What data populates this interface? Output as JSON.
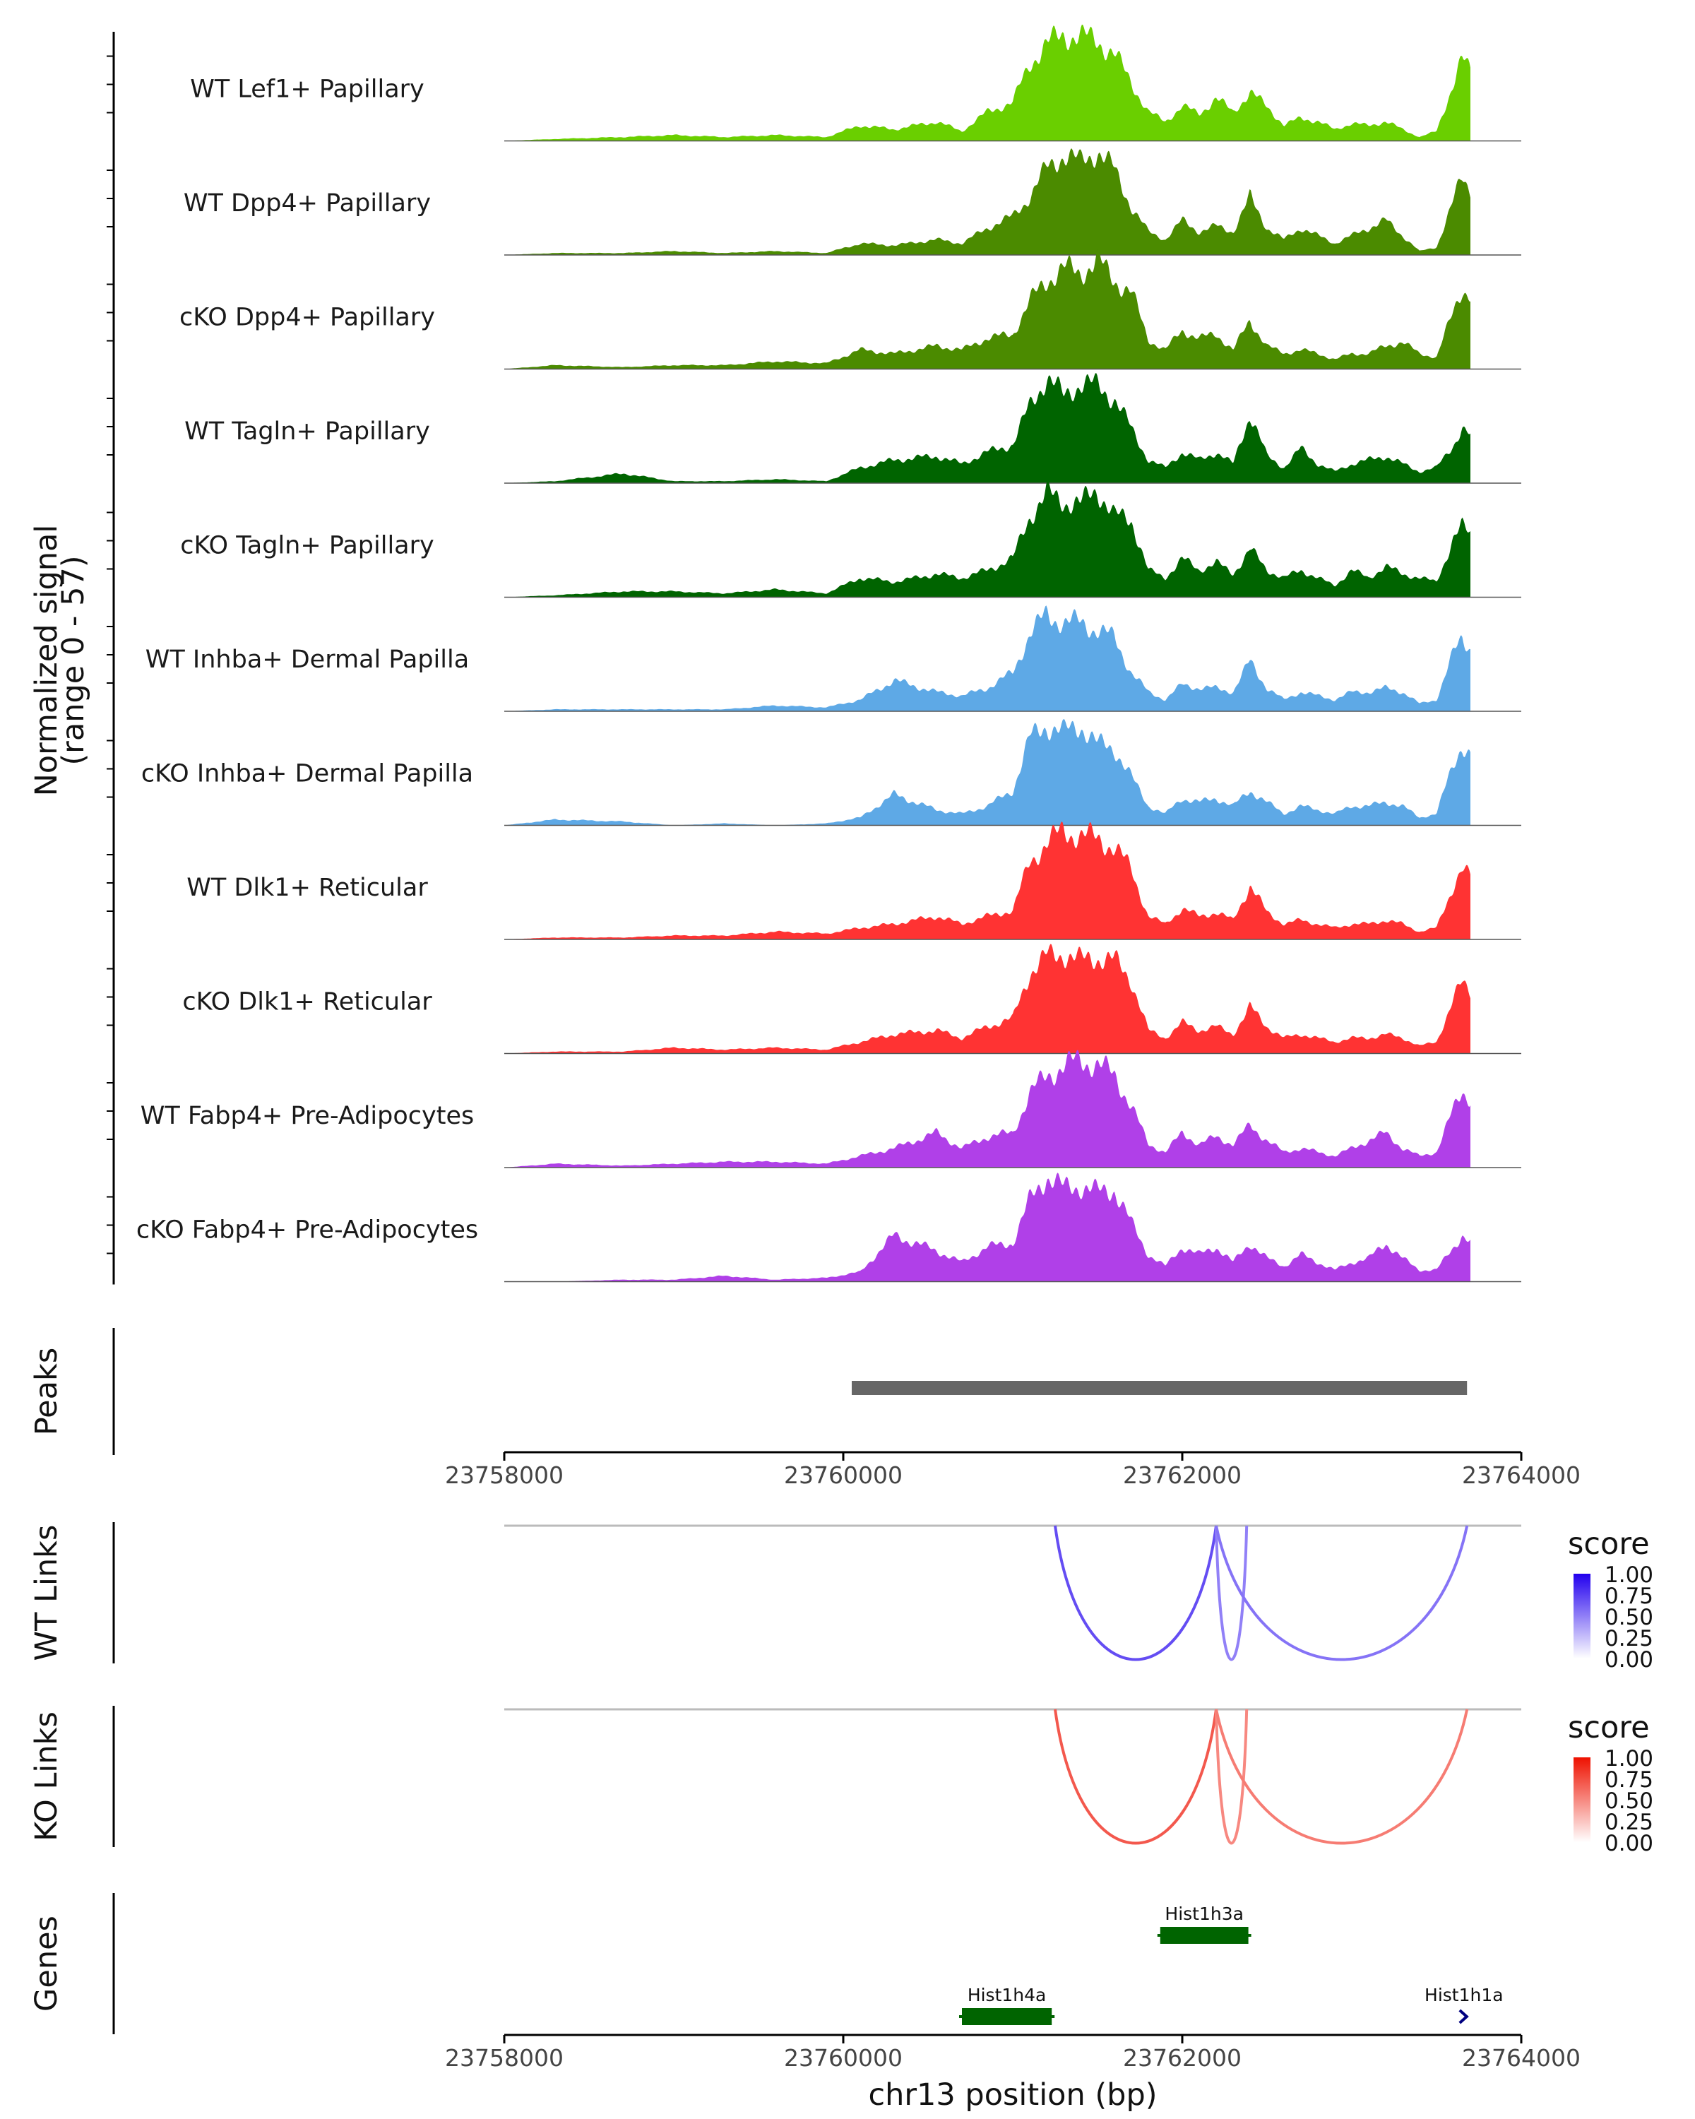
{
  "chart_data": {
    "type": "area",
    "region": "chr13",
    "xlim": [
      23758000,
      23764000
    ],
    "x_ticks": [
      23758000,
      23760000,
      23762000,
      23764000
    ],
    "x_tick_labels": [
      "23758000",
      "23760000",
      "23762000",
      "23764000"
    ],
    "xlabel": "chr13 position (bp)",
    "coverage": {
      "ylabel_line1": "Normalized signal",
      "ylabel_line2": "(range 0 - 57)",
      "ylim": [
        0,
        57
      ],
      "x": [
        23758000,
        23758300,
        23758700,
        23759000,
        23759300,
        23759600,
        23759900,
        23760100,
        23760300,
        23760550,
        23760700,
        23760850,
        23761000,
        23761100,
        23761200,
        23761300,
        23761400,
        23761500,
        23761600,
        23761700,
        23761800,
        23761900,
        23762000,
        23762100,
        23762200,
        23762300,
        23762400,
        23762500,
        23762600,
        23762700,
        23762800,
        23762900,
        23763000,
        23763100,
        23763200,
        23763300,
        23763400,
        23763500,
        23763600,
        23763650,
        23763700
      ],
      "tracks": [
        {
          "name": "WT Lef1+ Papillary",
          "color": "#6acf00",
          "values": [
            0,
            1,
            2,
            3,
            2,
            3,
            2,
            8,
            6,
            10,
            5,
            15,
            20,
            40,
            50,
            55,
            54,
            52,
            45,
            30,
            15,
            10,
            18,
            14,
            22,
            15,
            25,
            18,
            8,
            12,
            10,
            6,
            9,
            8,
            10,
            6,
            2,
            5,
            30,
            42,
            36
          ]
        },
        {
          "name": "WT Dpp4+ Papillary",
          "color": "#4b8b00",
          "values": [
            0,
            1,
            1,
            2,
            1,
            2,
            1,
            6,
            5,
            8,
            6,
            14,
            20,
            30,
            45,
            52,
            48,
            54,
            44,
            25,
            12,
            8,
            18,
            12,
            15,
            12,
            30,
            14,
            8,
            14,
            10,
            6,
            10,
            14,
            18,
            10,
            2,
            4,
            28,
            40,
            34
          ]
        },
        {
          "name": "cKO Dpp4+ Papillary",
          "color": "#4b8b00",
          "values": [
            0,
            2,
            1,
            2,
            2,
            4,
            3,
            10,
            8,
            12,
            10,
            16,
            18,
            35,
            46,
            52,
            50,
            56,
            46,
            40,
            15,
            10,
            20,
            16,
            18,
            10,
            25,
            12,
            8,
            10,
            8,
            5,
            8,
            8,
            12,
            14,
            8,
            6,
            30,
            42,
            38
          ]
        },
        {
          "name": "WT Tagln+ Papillary",
          "color": "#006400",
          "values": [
            0,
            1,
            5,
            1,
            1,
            2,
            1,
            8,
            12,
            14,
            10,
            16,
            20,
            40,
            55,
            45,
            52,
            50,
            44,
            28,
            12,
            8,
            16,
            12,
            16,
            10,
            36,
            14,
            8,
            18,
            10,
            6,
            10,
            12,
            14,
            10,
            6,
            8,
            20,
            28,
            24
          ]
        },
        {
          "name": "cKO Tagln+ Papillary",
          "color": "#006400",
          "values": [
            0,
            1,
            3,
            3,
            2,
            4,
            2,
            10,
            8,
            12,
            10,
            14,
            20,
            42,
            53,
            50,
            48,
            56,
            42,
            40,
            14,
            10,
            20,
            14,
            18,
            12,
            25,
            14,
            10,
            14,
            10,
            6,
            14,
            10,
            16,
            12,
            10,
            8,
            30,
            36,
            33
          ]
        },
        {
          "name": "WT Inhba+ Dermal Papilla",
          "color": "#5ea9e6",
          "values": [
            0,
            1,
            1,
            1,
            1,
            3,
            2,
            6,
            16,
            10,
            8,
            12,
            20,
            40,
            50,
            46,
            46,
            42,
            38,
            20,
            10,
            6,
            14,
            12,
            12,
            10,
            26,
            12,
            6,
            10,
            8,
            6,
            10,
            10,
            12,
            10,
            4,
            6,
            30,
            38,
            33
          ]
        },
        {
          "name": "cKO Inhba+ Dermal Papilla",
          "color": "#5ea9e6",
          "values": [
            0,
            3,
            2,
            0,
            1,
            0,
            1,
            4,
            16,
            8,
            6,
            10,
            18,
            45,
            52,
            48,
            52,
            42,
            40,
            25,
            10,
            6,
            14,
            12,
            14,
            10,
            18,
            12,
            6,
            10,
            8,
            6,
            10,
            10,
            12,
            10,
            4,
            6,
            32,
            42,
            36
          ]
        },
        {
          "name": "WT Dlk1+ Reticular",
          "color": "#ff3333",
          "values": [
            0,
            1,
            1,
            2,
            2,
            4,
            3,
            6,
            8,
            12,
            8,
            12,
            15,
            40,
            50,
            56,
            54,
            52,
            48,
            36,
            12,
            8,
            16,
            12,
            14,
            10,
            28,
            14,
            8,
            10,
            8,
            6,
            8,
            8,
            10,
            8,
            4,
            6,
            28,
            36,
            32
          ]
        },
        {
          "name": "cKO Dlk1+ Reticular",
          "color": "#ff3333",
          "values": [
            0,
            1,
            1,
            3,
            2,
            3,
            2,
            6,
            10,
            12,
            8,
            14,
            18,
            42,
            50,
            52,
            48,
            50,
            48,
            38,
            12,
            8,
            16,
            12,
            14,
            10,
            24,
            14,
            8,
            10,
            8,
            6,
            8,
            8,
            10,
            8,
            4,
            6,
            28,
            36,
            32
          ]
        },
        {
          "name": "WT Fabp4+ Pre-Adipocytes",
          "color": "#b040e8",
          "values": [
            0,
            2,
            1,
            2,
            3,
            3,
            2,
            6,
            10,
            18,
            10,
            16,
            18,
            38,
            48,
            52,
            56,
            53,
            48,
            32,
            12,
            8,
            18,
            12,
            16,
            12,
            22,
            14,
            8,
            10,
            8,
            6,
            10,
            14,
            18,
            10,
            6,
            8,
            30,
            40,
            36
          ]
        },
        {
          "name": "cKO Fabp4+ Pre-Adipocytes",
          "color": "#b040e8",
          "values": [
            0,
            0,
            1,
            1,
            3,
            1,
            2,
            5,
            24,
            16,
            10,
            18,
            20,
            42,
            55,
            48,
            50,
            46,
            48,
            30,
            14,
            8,
            18,
            14,
            18,
            10,
            20,
            12,
            8,
            14,
            10,
            6,
            10,
            12,
            20,
            12,
            6,
            6,
            18,
            24,
            20
          ]
        }
      ]
    },
    "peaks": {
      "label": "Peaks",
      "color": "#666666",
      "intervals": [
        [
          23760050,
          23763680
        ]
      ]
    },
    "links": [
      {
        "label": "WT Links",
        "legend_title": "score",
        "legend_ticks": [
          "1.00",
          "0.75",
          "0.50",
          "0.25",
          "0.00"
        ],
        "low_color": "#ffffff",
        "high_color": "#2200ee",
        "arcs": [
          {
            "start": 23761250,
            "end": 23762200,
            "score": 0.7
          },
          {
            "start": 23762200,
            "end": 23762380,
            "score": 0.5
          },
          {
            "start": 23762200,
            "end": 23763680,
            "score": 0.55
          }
        ]
      },
      {
        "label": "KO Links",
        "legend_title": "score",
        "legend_ticks": [
          "1.00",
          "0.75",
          "0.50",
          "0.25",
          "0.00"
        ],
        "low_color": "#ffffff",
        "high_color": "#ee1100",
        "arcs": [
          {
            "start": 23761250,
            "end": 23762200,
            "score": 0.7
          },
          {
            "start": 23762200,
            "end": 23762380,
            "score": 0.5
          },
          {
            "start": 23762200,
            "end": 23763680,
            "score": 0.55
          }
        ]
      }
    ],
    "genes": {
      "label": "Genes",
      "items": [
        {
          "name": "Hist1h3a",
          "start": 23761870,
          "end": 23762390,
          "row": 0,
          "color": "#006400"
        },
        {
          "name": "Hist1h4a",
          "start": 23760700,
          "end": 23761230,
          "row": 1,
          "color": "#006400"
        },
        {
          "name": "Hist1h1a",
          "start": 23763620,
          "end": 23763680,
          "row": 1,
          "color": "#000080",
          "arrow_only": true
        }
      ]
    }
  }
}
